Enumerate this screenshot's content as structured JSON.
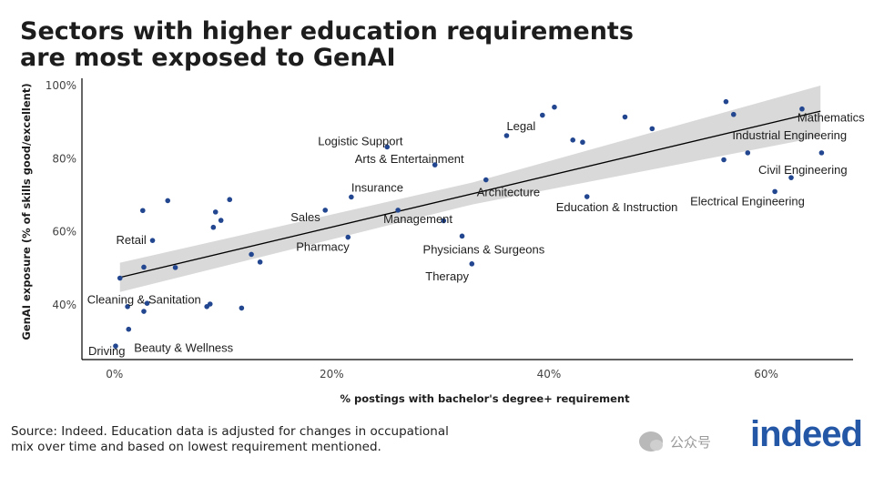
{
  "title": {
    "line1": "Sectors with higher education requirements",
    "line2": "are most exposed to GenAI"
  },
  "source": {
    "line1": "Source: Indeed. Education data is adjusted for changes in occupational",
    "line2": "mix over time and based on lowest requirement mentioned."
  },
  "watermark": {
    "text": "公众号"
  },
  "logo": {
    "text": "indeed",
    "color": "#2557a7"
  },
  "chart_data": {
    "type": "scatter",
    "xlabel": "% postings with bachelor's degree+ requirement",
    "ylabel": "GenAI exposure (% of skills good/excellent)",
    "xlim": [
      -3,
      68
    ],
    "ylim": [
      25,
      102
    ],
    "xticks": [
      {
        "value": 0,
        "label": "0%"
      },
      {
        "value": 20,
        "label": "20%"
      },
      {
        "value": 40,
        "label": "40%"
      },
      {
        "value": 60,
        "label": "60%"
      }
    ],
    "yticks": [
      {
        "value": 40,
        "label": "40%"
      },
      {
        "value": 60,
        "label": "60%"
      },
      {
        "value": 80,
        "label": "80%"
      },
      {
        "value": 100,
        "label": "100%"
      }
    ],
    "grid": false,
    "point_color": "#22468f",
    "trend_color": "#000000",
    "band_color": "#d9d9d9",
    "trend": {
      "x": [
        0.5,
        65
      ],
      "y": [
        47.5,
        93
      ]
    },
    "band": {
      "upper": [
        [
          0.5,
          51.5
        ],
        [
          33,
          73.5
        ],
        [
          65,
          100
        ]
      ],
      "lower": [
        [
          0.5,
          43.5
        ],
        [
          33,
          67.5
        ],
        [
          65,
          86
        ]
      ]
    },
    "points": [
      {
        "x": 0.1,
        "y": 28.7,
        "label": "Driving"
      },
      {
        "x": 0.5,
        "y": 47.3,
        "label": "Cleaning & Sanitation"
      },
      {
        "x": 1.2,
        "y": 39.5,
        "label": ""
      },
      {
        "x": 1.3,
        "y": 33.3,
        "label": "Beauty & Wellness"
      },
      {
        "x": 2.6,
        "y": 65.8,
        "label": ""
      },
      {
        "x": 2.7,
        "y": 38.2,
        "label": ""
      },
      {
        "x": 2.7,
        "y": 50.3,
        "label": ""
      },
      {
        "x": 3.0,
        "y": 40.4,
        "label": ""
      },
      {
        "x": 3.5,
        "y": 57.6,
        "label": "Retail"
      },
      {
        "x": 4.9,
        "y": 68.5,
        "label": ""
      },
      {
        "x": 5.6,
        "y": 50.2,
        "label": ""
      },
      {
        "x": 8.5,
        "y": 39.5,
        "label": ""
      },
      {
        "x": 8.8,
        "y": 40.2,
        "label": ""
      },
      {
        "x": 9.1,
        "y": 61.2,
        "label": ""
      },
      {
        "x": 9.3,
        "y": 65.4,
        "label": ""
      },
      {
        "x": 9.8,
        "y": 63.1,
        "label": ""
      },
      {
        "x": 10.6,
        "y": 68.8,
        "label": ""
      },
      {
        "x": 11.7,
        "y": 39.1,
        "label": ""
      },
      {
        "x": 12.6,
        "y": 53.8,
        "label": ""
      },
      {
        "x": 13.4,
        "y": 51.7,
        "label": ""
      },
      {
        "x": 19.4,
        "y": 65.9,
        "label": "Sales"
      },
      {
        "x": 21.5,
        "y": 58.5,
        "label": "Pharmacy"
      },
      {
        "x": 21.8,
        "y": 69.5,
        "label": "Insurance"
      },
      {
        "x": 25.1,
        "y": 83.2,
        "label": "Logistic Support"
      },
      {
        "x": 26.1,
        "y": 65.9,
        "label": "Management"
      },
      {
        "x": 29.5,
        "y": 78.3,
        "label": "Arts & Entertainment"
      },
      {
        "x": 30.3,
        "y": 63.0,
        "label": ""
      },
      {
        "x": 32.0,
        "y": 58.8,
        "label": "Physicians & Surgeons"
      },
      {
        "x": 32.9,
        "y": 51.2,
        "label": "Therapy"
      },
      {
        "x": 34.2,
        "y": 74.2,
        "label": "Architecture"
      },
      {
        "x": 36.1,
        "y": 86.3,
        "label": "Legal"
      },
      {
        "x": 39.4,
        "y": 91.9,
        "label": ""
      },
      {
        "x": 40.5,
        "y": 94.1,
        "label": ""
      },
      {
        "x": 42.2,
        "y": 85.1,
        "label": ""
      },
      {
        "x": 43.1,
        "y": 84.5,
        "label": ""
      },
      {
        "x": 43.5,
        "y": 69.6,
        "label": "Education & Instruction"
      },
      {
        "x": 47.0,
        "y": 91.4,
        "label": ""
      },
      {
        "x": 49.5,
        "y": 88.2,
        "label": ""
      },
      {
        "x": 56.1,
        "y": 79.7,
        "label": ""
      },
      {
        "x": 56.3,
        "y": 95.6,
        "label": ""
      },
      {
        "x": 57.0,
        "y": 92.1,
        "label": ""
      },
      {
        "x": 58.3,
        "y": 81.6,
        "label": ""
      },
      {
        "x": 60.8,
        "y": 71.0,
        "label": "Electrical Engineering"
      },
      {
        "x": 62.3,
        "y": 74.8,
        "label": "Civil Engineering"
      },
      {
        "x": 63.3,
        "y": 93.6,
        "label": "Mathematics"
      },
      {
        "x": 65.1,
        "y": 81.6,
        "label": "Industrial Engineering"
      }
    ]
  }
}
